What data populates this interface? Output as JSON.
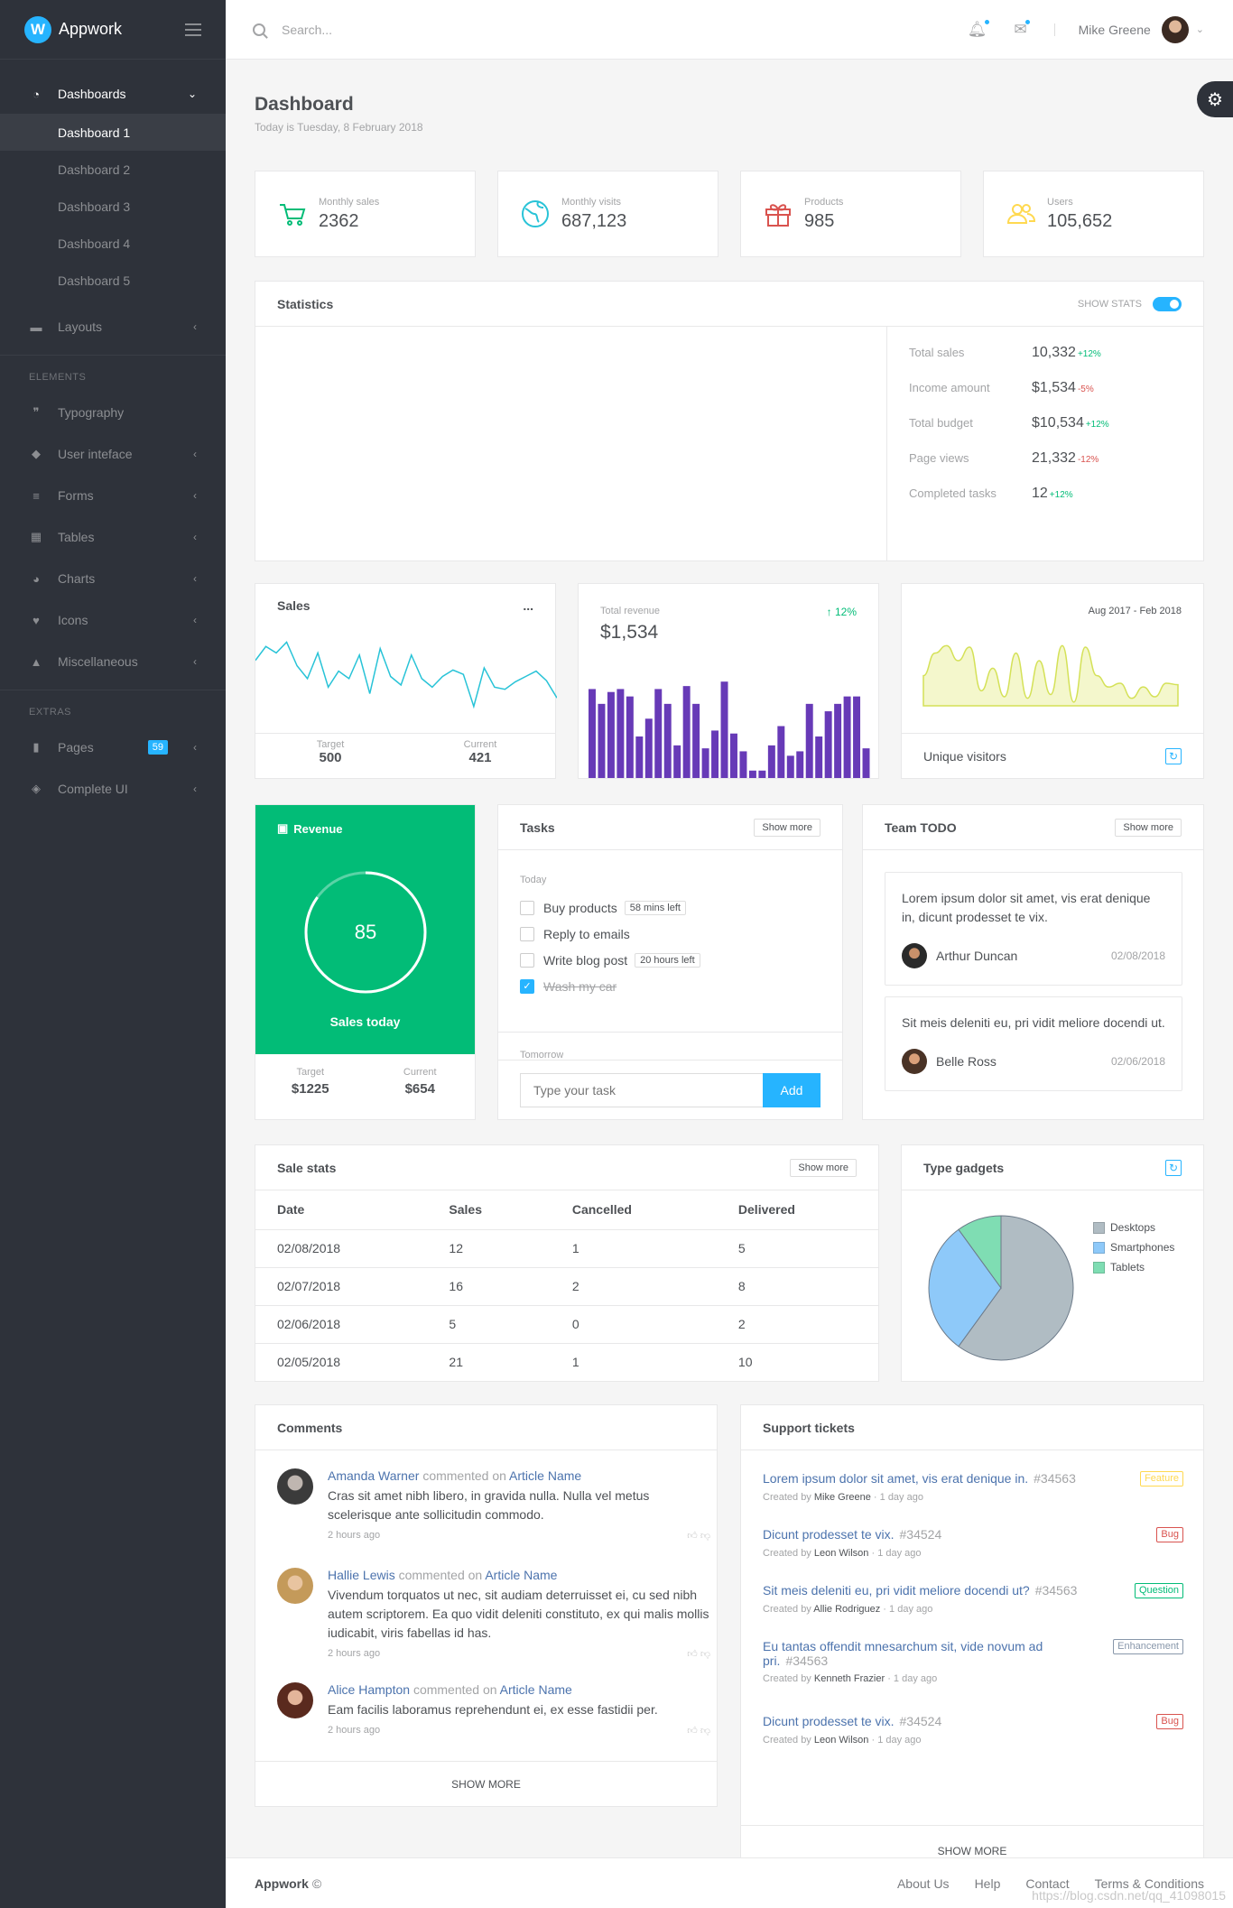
{
  "brand": {
    "name": "Appwork",
    "logo_letter": "W"
  },
  "sidebar": {
    "dashboards": {
      "label": "Dashboards",
      "items": [
        "Dashboard 1",
        "Dashboard 2",
        "Dashboard 3",
        "Dashboard 4",
        "Dashboard 5"
      ]
    },
    "layouts": "Layouts",
    "elements_header": "ELEMENTS",
    "elements": [
      "Typography",
      "User inteface",
      "Forms",
      "Tables",
      "Charts",
      "Icons",
      "Miscellaneous"
    ],
    "extras_header": "EXTRAS",
    "pages": {
      "label": "Pages",
      "badge": "59"
    },
    "complete_ui": "Complete UI"
  },
  "topbar": {
    "search_placeholder": "Search...",
    "user_name": "Mike Greene"
  },
  "page": {
    "title": "Dashboard",
    "subtitle": "Today is Tuesday, 8 February 2018"
  },
  "tiles": [
    {
      "label": "Monthly sales",
      "value": "2362",
      "icon": "cart-icon",
      "color": "#02bc77"
    },
    {
      "label": "Monthly visits",
      "value": "687,123",
      "icon": "globe-icon",
      "color": "#28c3d7"
    },
    {
      "label": "Products",
      "value": "985",
      "icon": "gift-icon",
      "color": "#d9534f"
    },
    {
      "label": "Users",
      "value": "105,652",
      "icon": "users-icon",
      "color": "#ffd950"
    }
  ],
  "statistics": {
    "title": "Statistics",
    "toggle_label": "SHOW STATS",
    "rows": [
      {
        "label": "Total sales",
        "value": "10,332",
        "change": "+12%",
        "positive": true
      },
      {
        "label": "Income amount",
        "value": "$1,534",
        "change": "-5%",
        "positive": false
      },
      {
        "label": "Total budget",
        "value": "$10,534",
        "change": "+12%",
        "positive": true
      },
      {
        "label": "Page views",
        "value": "21,332",
        "change": "-12%",
        "positive": false
      },
      {
        "label": "Completed tasks",
        "value": "12",
        "change": "+12%",
        "positive": true
      }
    ]
  },
  "sales": {
    "title": "Sales",
    "menu": "...",
    "target_label": "Target",
    "target": "500",
    "current_label": "Current",
    "current": "421"
  },
  "revenue": {
    "label": "Total revenue",
    "value": "$1,534",
    "change": "12%"
  },
  "visitors": {
    "range": "Aug 2017 - Feb 2018",
    "label": "Unique visitors"
  },
  "revenue_card": {
    "title": "Revenue",
    "value": "85",
    "caption": "Sales today",
    "target_label": "Target",
    "target": "$1225",
    "current_label": "Current",
    "current": "$654",
    "color": "#02bc77"
  },
  "tasks": {
    "title": "Tasks",
    "more": "Show more",
    "today": "Today",
    "tomorrow": "Tomorrow",
    "items": [
      {
        "text": "Buy products",
        "chip": "58 mins left",
        "done": false
      },
      {
        "text": "Reply to emails",
        "chip": "",
        "done": false
      },
      {
        "text": "Write blog post",
        "chip": "20 hours left",
        "done": false
      },
      {
        "text": "Wash my car",
        "chip": "",
        "done": true
      }
    ],
    "input_placeholder": "Type your task",
    "add_label": "Add"
  },
  "team_todo": {
    "title": "Team TODO",
    "more": "Show more",
    "items": [
      {
        "text": "Lorem ipsum dolor sit amet, vis erat denique in, dicunt prodesset te vix.",
        "author": "Arthur Duncan",
        "date": "02/08/2018"
      },
      {
        "text": "Sit meis deleniti eu, pri vidit meliore docendi ut.",
        "author": "Belle Ross",
        "date": "02/06/2018"
      }
    ]
  },
  "sale_stats": {
    "title": "Sale stats",
    "more": "Show more",
    "columns": [
      "Date",
      "Sales",
      "Cancelled",
      "Delivered"
    ],
    "rows": [
      [
        "02/08/2018",
        "12",
        "1",
        "5"
      ],
      [
        "02/07/2018",
        "16",
        "2",
        "8"
      ],
      [
        "02/06/2018",
        "5",
        "0",
        "2"
      ],
      [
        "02/05/2018",
        "21",
        "1",
        "10"
      ]
    ]
  },
  "gadgets": {
    "title": "Type gadgets",
    "legend": [
      {
        "name": "Desktops",
        "color": "#b0bcc3"
      },
      {
        "name": "Smartphones",
        "color": "#8ec9f9"
      },
      {
        "name": "Tablets",
        "color": "#7fddb3"
      }
    ]
  },
  "comments": {
    "title": "Comments",
    "more": "SHOW MORE",
    "items": [
      {
        "author": "Amanda Warner",
        "verb": "commented on",
        "target": "Article Name",
        "text": "Cras sit amet nibh libero, in gravida nulla. Nulla vel metus scelerisque ante sollicitudin commodo.",
        "time": "2 hours ago"
      },
      {
        "author": "Hallie Lewis",
        "verb": "commented on",
        "target": "Article Name",
        "text": "Vivendum torquatos ut nec, sit audiam deterruisset ei, cu sed nibh autem scriptorem. Ea quo vidit deleniti constituto, ex qui malis mollis iudicabit, viris fabellas id has.",
        "time": "2 hours ago"
      },
      {
        "author": "Alice Hampton",
        "verb": "commented on",
        "target": "Article Name",
        "text": "Eam facilis laboramus reprehendunt ei, ex esse fastidii per.",
        "time": "2 hours ago"
      }
    ]
  },
  "tickets": {
    "title": "Support tickets",
    "more": "SHOW MORE",
    "created_by": "Created by",
    "items": [
      {
        "title": "Lorem ipsum dolor sit amet, vis erat denique in.",
        "num": "#34563",
        "badge": "Feature",
        "color": "#ffd950",
        "author": "Mike Greene",
        "time": "1 day ago"
      },
      {
        "title": "Dicunt prodesset te vix.",
        "num": "#34524",
        "badge": "Bug",
        "color": "#d9534f",
        "author": "Leon Wilson",
        "time": "1 day ago"
      },
      {
        "title": "Sit meis deleniti eu, pri vidit meliore docendi ut?",
        "num": "#34563",
        "badge": "Question",
        "color": "#02bc77",
        "author": "Allie Rodriguez",
        "time": "1 day ago"
      },
      {
        "title": "Eu tantas offendit mnesarchum sit, vide novum ad pri.",
        "num": "#34563",
        "badge": "Enhancement",
        "color": "#8897aa",
        "author": "Kenneth Frazier",
        "time": "1 day ago"
      },
      {
        "title": "Dicunt prodesset te vix.",
        "num": "#34524",
        "badge": "Bug",
        "color": "#d9534f",
        "author": "Leon Wilson",
        "time": "1 day ago"
      }
    ]
  },
  "footer": {
    "brand": "Appwork",
    "copyright": "©",
    "links": [
      "About Us",
      "Help",
      "Contact",
      "Terms & Conditions"
    ]
  },
  "watermark": "https://blog.csdn.net/qq_41098015",
  "chart_data": [
    {
      "type": "line",
      "name": "sales",
      "values": [
        55,
        68,
        62,
        72,
        50,
        38,
        62,
        30,
        45,
        38,
        60,
        24,
        66,
        40,
        32,
        60,
        38,
        30,
        40,
        46,
        42,
        12,
        48,
        30,
        28,
        35,
        40,
        45,
        36,
        20
      ],
      "ylim": [
        0,
        80
      ]
    },
    {
      "type": "bar",
      "name": "revenue",
      "values": [
        60,
        50,
        58,
        60,
        55,
        28,
        40,
        60,
        50,
        22,
        62,
        50,
        20,
        32,
        65,
        30,
        18,
        5,
        5,
        22,
        35,
        15,
        18,
        50,
        28,
        45,
        50,
        55,
        55,
        20
      ],
      "ylim": [
        0,
        70
      ]
    },
    {
      "type": "area",
      "name": "unique-visitors",
      "values": [
        40,
        70,
        80,
        60,
        78,
        20,
        50,
        12,
        70,
        10,
        60,
        15,
        80,
        5,
        78,
        40,
        25,
        30,
        10,
        25,
        12,
        30,
        28
      ],
      "ylim": [
        0,
        90
      ]
    },
    {
      "type": "pie",
      "name": "type-gadgets",
      "labels": [
        "Desktops",
        "Smartphones",
        "Tablets"
      ],
      "values": [
        60,
        30,
        10
      ]
    }
  ]
}
